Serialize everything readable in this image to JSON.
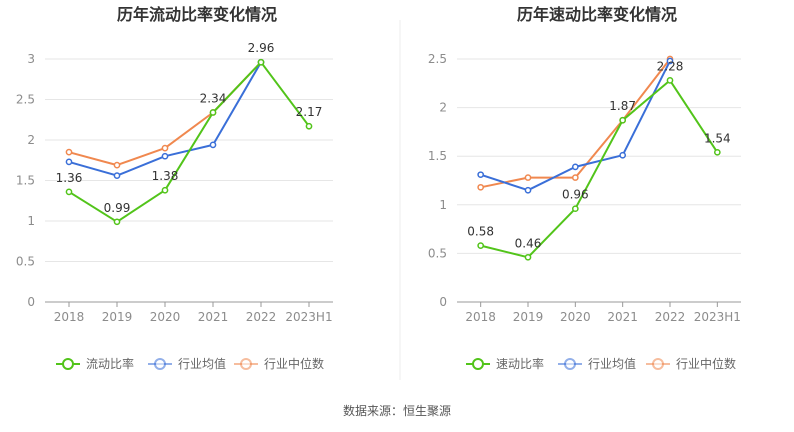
{
  "source_text": "数据来源：恒生聚源",
  "chart_data": [
    {
      "type": "line",
      "title": "历年流动比率变化情况",
      "categories": [
        "2018",
        "2019",
        "2020",
        "2021",
        "2022",
        "2023H1"
      ],
      "ylim": [
        0,
        3
      ],
      "yticks": [
        "0",
        "0.5",
        "1",
        "1.5",
        "2",
        "2.5",
        "3"
      ],
      "ytick_values": [
        0,
        0.5,
        1,
        1.5,
        2,
        2.5,
        3
      ],
      "grid": true,
      "legend_position": "bottom",
      "series": [
        {
          "name": "流动比率",
          "color": "#52c41a",
          "values": [
            1.36,
            0.99,
            1.38,
            2.34,
            2.96,
            2.17
          ],
          "labels": [
            "1.36",
            "0.99",
            "1.38",
            "2.34",
            "2.96",
            "2.17"
          ]
        },
        {
          "name": "行业均值",
          "color": "#3a6fd8",
          "values": [
            1.73,
            1.56,
            1.8,
            1.94,
            2.96,
            null
          ]
        },
        {
          "name": "行业中位数",
          "color": "#f0884f",
          "values": [
            1.85,
            1.69,
            1.9,
            2.34,
            2.96,
            null
          ]
        }
      ]
    },
    {
      "type": "line",
      "title": "历年速动比率变化情况",
      "categories": [
        "2018",
        "2019",
        "2020",
        "2021",
        "2022",
        "2023H1"
      ],
      "ylim": [
        0,
        2.5
      ],
      "yticks": [
        "0",
        "0.5",
        "1",
        "1.5",
        "2",
        "2.5"
      ],
      "ytick_values": [
        0,
        0.5,
        1,
        1.5,
        2,
        2.5
      ],
      "grid": true,
      "legend_position": "bottom",
      "series": [
        {
          "name": "速动比率",
          "color": "#52c41a",
          "values": [
            0.58,
            0.46,
            0.96,
            1.87,
            2.28,
            1.54
          ],
          "labels": [
            "0.58",
            "0.46",
            "0.96",
            "1.87",
            "2.28",
            "1.54"
          ]
        },
        {
          "name": "行业均值",
          "color": "#3a6fd8",
          "values": [
            1.31,
            1.15,
            1.39,
            1.51,
            2.48,
            null
          ]
        },
        {
          "name": "行业中位数",
          "color": "#f0884f",
          "values": [
            1.18,
            1.28,
            1.28,
            1.87,
            2.5,
            null
          ]
        }
      ]
    }
  ]
}
